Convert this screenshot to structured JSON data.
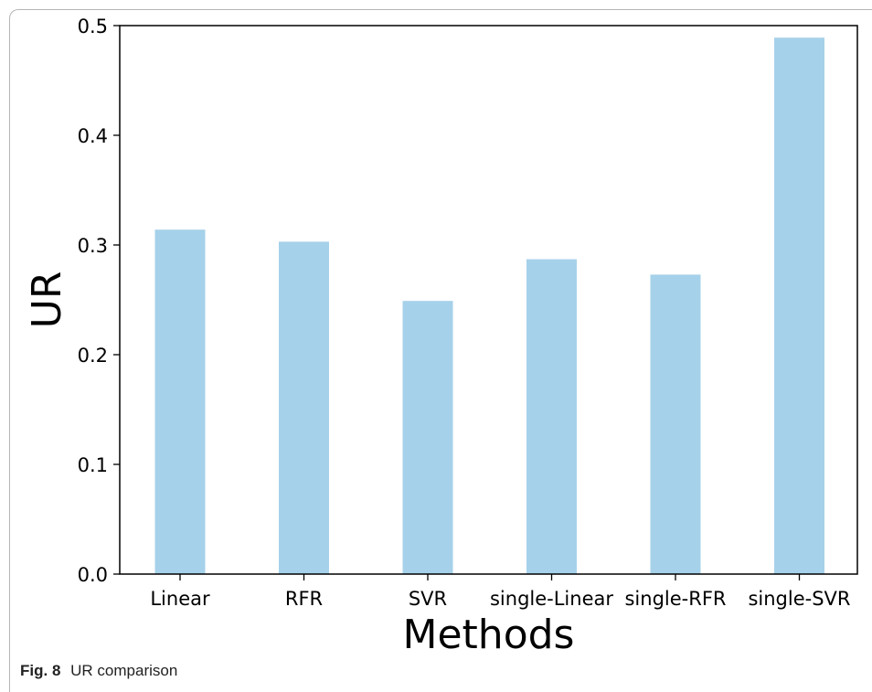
{
  "caption": {
    "label": "Fig. 8",
    "text": "UR comparison"
  },
  "colors": {
    "bar": "#a6d1ea",
    "axis": "#000000",
    "text": "#000000"
  },
  "chart_data": {
    "type": "bar",
    "categories": [
      "Linear",
      "RFR",
      "SVR",
      "single-Linear",
      "single-RFR",
      "single-SVR"
    ],
    "values": [
      0.314,
      0.303,
      0.249,
      0.287,
      0.273,
      0.489
    ],
    "title": "",
    "xlabel": "Methods",
    "ylabel": "UR",
    "ylim": [
      0,
      0.5
    ],
    "yticks": [
      "0.0",
      "0.1",
      "0.2",
      "0.3",
      "0.4",
      "0.5"
    ],
    "grid": false,
    "legend": "none"
  }
}
